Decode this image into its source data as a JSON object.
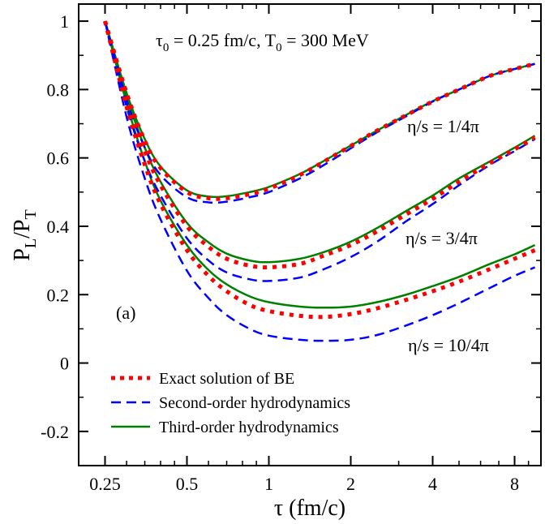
{
  "chart_data": {
    "type": "line",
    "xscale": "log",
    "xlim": [
      0.2,
      10.0
    ],
    "ylim": [
      -0.3,
      1.05
    ],
    "xlabel": "τ (fm/c)",
    "ylabel": {
      "main": "P",
      "sub1": "L",
      "mid": "/P",
      "sub2": "T"
    },
    "xticks": [
      {
        "value": 0.25,
        "label": "0.25"
      },
      {
        "value": 0.5,
        "label": "0.5"
      },
      {
        "value": 1,
        "label": "1"
      },
      {
        "value": 2,
        "label": "2"
      },
      {
        "value": 4,
        "label": "4"
      },
      {
        "value": 8,
        "label": "8"
      }
    ],
    "yticks": [
      {
        "value": 1,
        "label": "1"
      },
      {
        "value": 0.8,
        "label": "0.8"
      },
      {
        "value": 0.6,
        "label": "0.6"
      },
      {
        "value": 0.4,
        "label": "0.4"
      },
      {
        "value": 0.2,
        "label": "0.2"
      },
      {
        "value": 0,
        "label": "0"
      },
      {
        "value": -0.2,
        "label": "-0.2"
      }
    ],
    "x_minor_ticks": [
      0.3,
      0.35,
      0.4,
      0.45,
      0.6,
      0.7,
      0.8,
      0.9,
      3,
      5,
      6,
      7,
      9
    ],
    "y_minor_ticks": [
      0.9,
      0.7,
      0.5,
      0.3,
      0.1,
      -0.1,
      -0.3
    ],
    "annotations": {
      "panel": "(a)",
      "params": "τ0 = 0.25 fm/c,   T0 = 300 MeV",
      "params_parts": {
        "tau": "τ",
        "tau_sub": "0",
        "tau_rest": " = 0.25 fm/c,   T",
        "t_sub": "0",
        "t_rest": " = 300 MeV"
      },
      "eta1": "η/s = 1/4π",
      "eta2": "η/s = 3/4π",
      "eta3": "η/s = 10/4π"
    },
    "legend": {
      "placement": "bottom-left",
      "entries": [
        {
          "label": "Exact solution of BE",
          "style": "dotted",
          "color": "#ff0000"
        },
        {
          "label": "Second-order hydrodynamics",
          "style": "dashed",
          "color": "#0000ff"
        },
        {
          "label": "Third-order hydrodynamics",
          "style": "solid",
          "color": "#008000"
        }
      ]
    },
    "series": [
      {
        "name": "Exact solution of BE",
        "group": "η/s = 1/4π",
        "style": "dotted",
        "color": "#ff0000",
        "x": [
          0.25,
          0.3,
          0.35,
          0.4,
          0.5,
          0.6,
          0.7,
          0.85,
          1.0,
          1.3,
          1.6,
          2.0,
          2.5,
          3.2,
          4.0,
          5.0,
          6.5,
          8.0,
          9.5
        ],
        "y": [
          1.0,
          0.79,
          0.65,
          0.57,
          0.5,
          0.482,
          0.482,
          0.494,
          0.51,
          0.55,
          0.59,
          0.635,
          0.68,
          0.725,
          0.765,
          0.8,
          0.84,
          0.86,
          0.875
        ]
      },
      {
        "name": "Second-order hydrodynamics",
        "group": "η/s = 1/4π",
        "style": "dashed",
        "color": "#0000ff",
        "x": [
          0.25,
          0.3,
          0.35,
          0.4,
          0.5,
          0.6,
          0.7,
          0.85,
          1.0,
          1.3,
          1.6,
          2.0,
          2.5,
          3.2,
          4.0,
          5.0,
          6.5,
          8.0,
          9.5
        ],
        "y": [
          1.0,
          0.77,
          0.63,
          0.55,
          0.485,
          0.47,
          0.472,
          0.485,
          0.5,
          0.54,
          0.58,
          0.628,
          0.675,
          0.722,
          0.765,
          0.8,
          0.84,
          0.86,
          0.875
        ]
      },
      {
        "name": "Third-order hydrodynamics",
        "group": "η/s = 1/4π",
        "style": "solid",
        "color": "#008000",
        "x": [
          0.25,
          0.3,
          0.35,
          0.4,
          0.5,
          0.6,
          0.7,
          0.85,
          1.0,
          1.3,
          1.6,
          2.0,
          2.5,
          3.2,
          4.0,
          5.0,
          6.5,
          8.0,
          9.5
        ],
        "y": [
          1.0,
          0.79,
          0.655,
          0.575,
          0.505,
          0.487,
          0.488,
          0.5,
          0.515,
          0.553,
          0.592,
          0.636,
          0.68,
          0.726,
          0.766,
          0.8,
          0.84,
          0.86,
          0.875
        ]
      },
      {
        "name": "Exact solution of BE",
        "group": "η/s = 3/4π",
        "style": "dotted",
        "color": "#ff0000",
        "x": [
          0.25,
          0.3,
          0.35,
          0.4,
          0.5,
          0.6,
          0.7,
          0.85,
          1.0,
          1.3,
          1.6,
          2.0,
          2.5,
          3.2,
          4.0,
          5.0,
          6.5,
          8.0,
          9.5
        ],
        "y": [
          1.0,
          0.77,
          0.62,
          0.52,
          0.4,
          0.34,
          0.305,
          0.285,
          0.28,
          0.29,
          0.315,
          0.345,
          0.385,
          0.435,
          0.48,
          0.53,
          0.585,
          0.625,
          0.66
        ]
      },
      {
        "name": "Second-order hydrodynamics",
        "group": "η/s = 3/4π",
        "style": "dashed",
        "color": "#0000ff",
        "x": [
          0.25,
          0.3,
          0.35,
          0.4,
          0.5,
          0.6,
          0.7,
          0.85,
          1.0,
          1.3,
          1.6,
          2.0,
          2.5,
          3.2,
          4.0,
          5.0,
          6.5,
          8.0,
          9.5
        ],
        "y": [
          1.0,
          0.75,
          0.59,
          0.49,
          0.365,
          0.3,
          0.265,
          0.245,
          0.24,
          0.25,
          0.275,
          0.31,
          0.355,
          0.415,
          0.465,
          0.52,
          0.58,
          0.62,
          0.655
        ]
      },
      {
        "name": "Third-order hydrodynamics",
        "group": "η/s = 3/4π",
        "style": "solid",
        "color": "#008000",
        "x": [
          0.25,
          0.3,
          0.35,
          0.4,
          0.5,
          0.6,
          0.7,
          0.85,
          1.0,
          1.3,
          1.6,
          2.0,
          2.5,
          3.2,
          4.0,
          5.0,
          6.5,
          8.0,
          9.5
        ],
        "y": [
          1.0,
          0.78,
          0.63,
          0.53,
          0.41,
          0.353,
          0.32,
          0.3,
          0.295,
          0.305,
          0.325,
          0.355,
          0.395,
          0.445,
          0.49,
          0.54,
          0.59,
          0.63,
          0.665
        ]
      },
      {
        "name": "Exact solution of BE",
        "group": "η/s = 10/4π",
        "style": "dotted",
        "color": "#ff0000",
        "x": [
          0.25,
          0.3,
          0.35,
          0.4,
          0.5,
          0.6,
          0.7,
          0.85,
          1.0,
          1.3,
          1.6,
          2.0,
          2.5,
          3.2,
          4.0,
          5.0,
          6.5,
          8.0,
          9.5
        ],
        "y": [
          1.0,
          0.75,
          0.58,
          0.465,
          0.33,
          0.255,
          0.21,
          0.17,
          0.152,
          0.138,
          0.135,
          0.143,
          0.16,
          0.185,
          0.21,
          0.238,
          0.275,
          0.305,
          0.33
        ]
      },
      {
        "name": "Second-order hydrodynamics",
        "group": "η/s = 10/4π",
        "style": "dashed",
        "color": "#0000ff",
        "x": [
          0.25,
          0.3,
          0.35,
          0.4,
          0.5,
          0.6,
          0.7,
          0.85,
          1.0,
          1.3,
          1.6,
          2.0,
          2.5,
          3.2,
          4.0,
          5.0,
          6.5,
          8.0,
          9.5
        ],
        "y": [
          1.0,
          0.72,
          0.54,
          0.42,
          0.27,
          0.19,
          0.14,
          0.1,
          0.08,
          0.068,
          0.065,
          0.068,
          0.082,
          0.11,
          0.14,
          0.175,
          0.22,
          0.255,
          0.28
        ]
      },
      {
        "name": "Third-order hydrodynamics",
        "group": "η/s = 10/4π",
        "style": "solid",
        "color": "#008000",
        "x": [
          0.25,
          0.3,
          0.35,
          0.4,
          0.5,
          0.6,
          0.7,
          0.85,
          1.0,
          1.3,
          1.6,
          2.0,
          2.5,
          3.2,
          4.0,
          5.0,
          6.5,
          8.0,
          9.5
        ],
        "y": [
          1.0,
          0.76,
          0.59,
          0.475,
          0.345,
          0.272,
          0.23,
          0.195,
          0.178,
          0.165,
          0.162,
          0.165,
          0.178,
          0.2,
          0.225,
          0.252,
          0.29,
          0.318,
          0.345
        ]
      }
    ]
  }
}
